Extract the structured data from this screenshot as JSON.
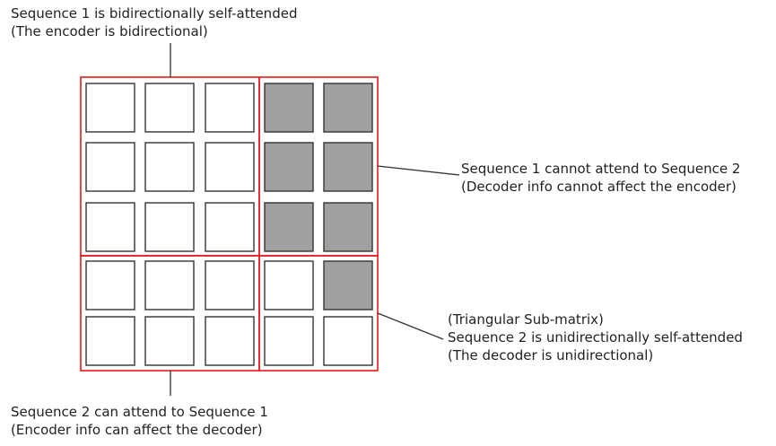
{
  "annotations": {
    "top": {
      "line1": "Sequence 1 is bidirectionally self-attended",
      "line2": "(The encoder is bidirectional)"
    },
    "right_top": {
      "line1": "Sequence 1 cannot attend to Sequence 2",
      "line2": "(Decoder info cannot affect the encoder)"
    },
    "right_bottom": {
      "line1": "(Triangular Sub-matrix)",
      "line2": "Sequence 2 is unidirectionally self-attended",
      "line3": "(The decoder is unidirectional)"
    },
    "bottom": {
      "line1": "Sequence 2 can attend to Sequence 1",
      "line2": "(Encoder info can affect the decoder)"
    }
  },
  "matrix": {
    "rows": 5,
    "cols": 5,
    "masked": [
      [
        false,
        false,
        false,
        true,
        true
      ],
      [
        false,
        false,
        false,
        true,
        true
      ],
      [
        false,
        false,
        false,
        true,
        true
      ],
      [
        false,
        false,
        false,
        false,
        true
      ],
      [
        false,
        false,
        false,
        false,
        false
      ]
    ]
  },
  "colors": {
    "masked_fill": "#a0a0a0",
    "open_fill": "#ffffff",
    "cell_stroke": "#333333",
    "region_stroke": "#e8191c",
    "leader_stroke": "#333333"
  }
}
